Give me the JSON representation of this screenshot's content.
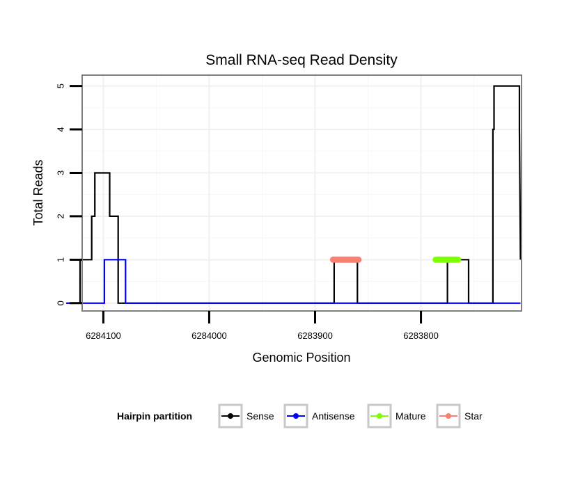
{
  "chart_data": {
    "type": "line",
    "title": "Small RNA-seq Read Density",
    "xlabel": "Genomic Position",
    "ylabel": "Total Reads",
    "x_reversed": true,
    "xlim": [
      6284120,
      6283705
    ],
    "ylim": [
      -0.18,
      5.25
    ],
    "x_ticks": [
      6284100,
      6284000,
      6283900,
      6283800
    ],
    "x_tick_labels": [
      "6284100",
      "6284000",
      "6283900",
      "6283800"
    ],
    "y_ticks": [
      0,
      1,
      2,
      3,
      4,
      5
    ],
    "y_tick_labels": [
      "0",
      "1",
      "2",
      "3",
      "4",
      "5"
    ],
    "grid": true,
    "legend": {
      "title": "Hairpin partition",
      "position": "bottom",
      "entries": [
        "Sense",
        "Antisense",
        "Mature",
        "Star"
      ]
    },
    "series": [
      {
        "name": "Sense",
        "color": "#000000",
        "x": [
          6284135,
          6284122,
          6284122,
          6284111,
          6284111,
          6284108,
          6284108,
          6284103,
          6284103,
          6284094,
          6284094,
          6284086,
          6284086,
          6284080,
          6284080,
          6284051,
          6283882,
          6283882,
          6283860,
          6283860,
          6283775,
          6283775,
          6283755,
          6283755,
          6283732,
          6283732,
          6283731,
          6283731,
          6283707,
          6283707,
          6283706
        ],
        "y": [
          0,
          0,
          1,
          1,
          2,
          2,
          3,
          3,
          3,
          3,
          2,
          2,
          0,
          0,
          0,
          0,
          0,
          1,
          1,
          0,
          0,
          1,
          1,
          0,
          0,
          4,
          4,
          5,
          5,
          4,
          1
        ]
      },
      {
        "name": "Antisense",
        "color": "#0000ff",
        "x": [
          6284135,
          6284099,
          6284099,
          6284079,
          6284079,
          6283706
        ],
        "y": [
          0,
          0,
          1,
          1,
          0,
          0
        ]
      },
      {
        "name": "Mature",
        "color": "#7fff00",
        "x": [
          6283786,
          6283765
        ],
        "y": [
          1,
          1
        ]
      },
      {
        "name": "Star",
        "color": "#fa8072",
        "x": [
          6283883,
          6283859
        ],
        "y": [
          1,
          1
        ]
      }
    ]
  }
}
